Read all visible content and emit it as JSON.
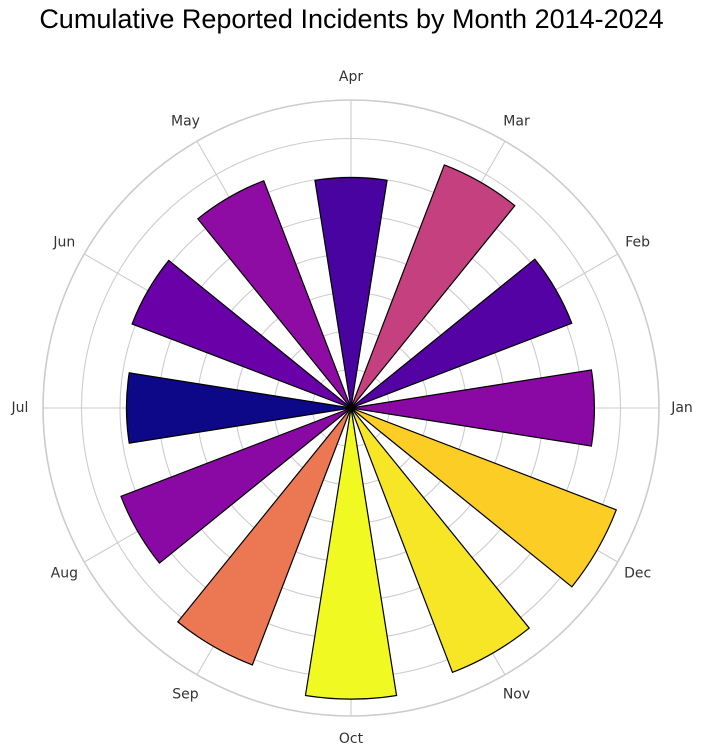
{
  "chart_data": {
    "type": "bar",
    "polar": true,
    "title": "Cumulative Reported Incidents by Month 2014-2024",
    "categories": [
      "Jan",
      "Feb",
      "Mar",
      "Apr",
      "May",
      "Jun",
      "Jul",
      "Aug",
      "Sep",
      "Oct",
      "Nov",
      "Dec"
    ],
    "values": [
      245,
      238,
      262,
      232,
      245,
      236,
      226,
      248,
      277,
      293,
      285,
      286
    ],
    "colors": [
      "#8a09a5",
      "#5402a3",
      "#c5407e",
      "#4903a0",
      "#8e0ca4",
      "#6900a8",
      "#0d0887",
      "#8a09a5",
      "#ec7853",
      "#f0f921",
      "#f6e626",
      "#fccd25"
    ],
    "rlim": [
      0,
      310
    ],
    "grid": true,
    "legend": "none"
  }
}
